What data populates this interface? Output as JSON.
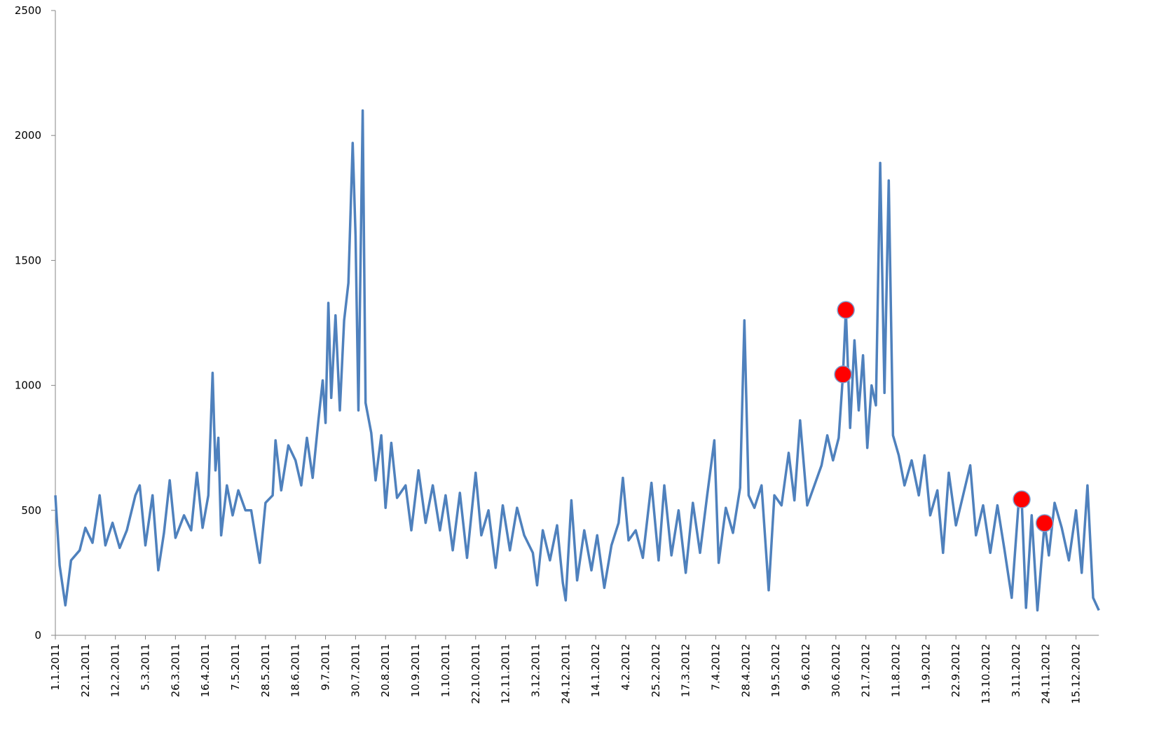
{
  "chart_data": {
    "type": "line",
    "xlim": [
      "1.1.2011",
      "31.12.2012"
    ],
    "xticks": [
      "1.1.2011",
      "22.1.2011",
      "12.2.2011",
      "5.3.2011",
      "26.3.2011",
      "16.4.2011",
      "7.5.2011",
      "28.5.2011",
      "18.6.2011",
      "9.7.2011",
      "30.7.2011",
      "20.8.2011",
      "10.9.2011",
      "1.10.2011",
      "22.10.2011",
      "12.11.2011",
      "3.12.2011",
      "24.12.2011",
      "14.1.2012",
      "4.2.2012",
      "25.2.2012",
      "17.3.2012",
      "7.4.2012",
      "28.4.2012",
      "19.5.2012",
      "9.6.2012",
      "30.6.2012",
      "21.7.2012",
      "11.8.2012",
      "1.9.2012",
      "22.9.2012",
      "13.10.2012",
      "3.11.2012",
      "24.11.2012",
      "15.12.2012"
    ],
    "ylim": [
      0,
      2500
    ],
    "yticks": [
      0,
      500,
      1000,
      1500,
      2000,
      2500
    ],
    "series": [
      {
        "color": "#4f81bd",
        "x": [
          "1.1.2011",
          "4.1.2011",
          "8.1.2011",
          "12.1.2011",
          "18.1.2011",
          "22.1.2011",
          "27.1.2011",
          "1.2.2011",
          "5.2.2011",
          "10.2.2011",
          "15.2.2011",
          "20.2.2011",
          "26.2.2011",
          "1.3.2011",
          "5.3.2011",
          "10.3.2011",
          "14.3.2011",
          "18.3.2011",
          "22.3.2011",
          "26.3.2011",
          "1.4.2011",
          "6.4.2011",
          "10.4.2011",
          "14.4.2011",
          "18.4.2011",
          "21.4.2011",
          "23.4.2011",
          "25.4.2011",
          "27.4.2011",
          "1.5.2011",
          "5.5.2011",
          "9.5.2011",
          "14.5.2011",
          "18.5.2011",
          "24.5.2011",
          "28.5.2011",
          "2.6.2011",
          "4.6.2011",
          "8.6.2011",
          "13.6.2011",
          "18.6.2011",
          "22.6.2011",
          "26.6.2011",
          "30.6.2011",
          "4.7.2011",
          "7.7.2011",
          "9.7.2011",
          "11.7.2011",
          "13.7.2011",
          "16.7.2011",
          "19.7.2011",
          "22.7.2011",
          "25.7.2011",
          "28.7.2011",
          "30.7.2011",
          "1.8.2011",
          "4.8.2011",
          "6.8.2011",
          "10.8.2011",
          "13.8.2011",
          "17.8.2011",
          "20.8.2011",
          "24.8.2011",
          "28.8.2011",
          "3.9.2011",
          "7.9.2011",
          "12.9.2011",
          "17.9.2011",
          "22.9.2011",
          "27.9.2011",
          "1.10.2011",
          "6.10.2011",
          "11.10.2011",
          "16.10.2011",
          "22.10.2011",
          "26.10.2011",
          "31.10.2011",
          "5.11.2011",
          "10.11.2011",
          "15.11.2011",
          "20.11.2011",
          "25.11.2011",
          "1.12.2011",
          "4.12.2011",
          "8.12.2011",
          "13.12.2011",
          "18.12.2011",
          "22.12.2011",
          "24.12.2011",
          "28.12.2011",
          "1.1.2012",
          "6.1.2012",
          "11.1.2012",
          "15.1.2012",
          "20.1.2012",
          "25.1.2012",
          "30.1.2012",
          "2.2.2012",
          "6.2.2012",
          "11.2.2012",
          "16.2.2012",
          "22.2.2012",
          "27.2.2012",
          "2.3.2012",
          "7.3.2012",
          "12.3.2012",
          "17.3.2012",
          "22.3.2012",
          "27.3.2012",
          "1.4.2012",
          "6.4.2012",
          "9.4.2012",
          "14.4.2012",
          "19.4.2012",
          "24.4.2012",
          "27.4.2012",
          "30.4.2012",
          "4.5.2012",
          "9.5.2012",
          "14.5.2012",
          "18.5.2012",
          "23.5.2012",
          "28.5.2012",
          "1.6.2012",
          "5.6.2012",
          "10.6.2012",
          "15.6.2012",
          "20.6.2012",
          "24.6.2012",
          "28.6.2012",
          "2.7.2012",
          "5.7.2012",
          "7.7.2012",
          "10.7.2012",
          "13.7.2012",
          "16.7.2012",
          "19.7.2012",
          "22.7.2012",
          "25.7.2012",
          "28.7.2012",
          "31.7.2012",
          "3.8.2012",
          "6.8.2012",
          "9.8.2012",
          "13.8.2012",
          "17.8.2012",
          "22.8.2012",
          "27.8.2012",
          "31.8.2012",
          "4.9.2012",
          "9.9.2012",
          "13.9.2012",
          "17.9.2012",
          "22.9.2012",
          "27.9.2012",
          "2.10.2012",
          "6.10.2012",
          "11.10.2012",
          "16.10.2012",
          "21.10.2012",
          "26.10.2012",
          "31.10.2012",
          "5.11.2012",
          "7.11.2012",
          "10.11.2012",
          "14.11.2012",
          "18.11.2012",
          "23.11.2012",
          "26.11.2012",
          "30.11.2012",
          "5.12.2012",
          "10.12.2012",
          "15.12.2012",
          "19.12.2012",
          "23.12.2012",
          "27.12.2012",
          "31.12.2012"
        ],
        "values": [
          560,
          280,
          120,
          300,
          340,
          430,
          370,
          560,
          360,
          450,
          350,
          420,
          560,
          600,
          360,
          560,
          260,
          410,
          620,
          390,
          480,
          420,
          650,
          430,
          560,
          1050,
          660,
          790,
          400,
          600,
          480,
          580,
          500,
          500,
          290,
          530,
          560,
          780,
          580,
          760,
          700,
          600,
          790,
          630,
          860,
          1020,
          850,
          1330,
          950,
          1280,
          900,
          1260,
          1410,
          1970,
          1600,
          900,
          2100,
          930,
          810,
          620,
          800,
          510,
          770,
          550,
          600,
          420,
          660,
          450,
          600,
          420,
          560,
          340,
          570,
          310,
          650,
          400,
          500,
          270,
          520,
          340,
          510,
          400,
          330,
          200,
          420,
          300,
          440,
          210,
          140,
          540,
          220,
          420,
          260,
          400,
          190,
          360,
          450,
          630,
          380,
          420,
          310,
          610,
          300,
          600,
          320,
          500,
          250,
          530,
          330,
          560,
          780,
          290,
          510,
          410,
          590,
          1260,
          560,
          510,
          600,
          180,
          560,
          520,
          730,
          540,
          860,
          520,
          600,
          680,
          800,
          700,
          790,
          1044,
          1302,
          830,
          1180,
          900,
          1120,
          750,
          1000,
          920,
          1890,
          970,
          1820,
          800,
          720,
          600,
          700,
          560,
          720,
          480,
          580,
          330,
          650,
          440,
          560,
          680,
          400,
          520,
          330,
          520,
          340,
          150,
          544,
          544,
          110,
          480,
          100,
          449,
          320,
          530,
          430,
          300,
          500,
          250,
          600,
          150,
          100
        ]
      }
    ],
    "markers": {
      "color": "#ff0000",
      "x": [
        "5.7.2012",
        "7.7.2012",
        "7.11.2012",
        "23.11.2012"
      ],
      "values": [
        1044,
        1302,
        544,
        449
      ]
    }
  }
}
